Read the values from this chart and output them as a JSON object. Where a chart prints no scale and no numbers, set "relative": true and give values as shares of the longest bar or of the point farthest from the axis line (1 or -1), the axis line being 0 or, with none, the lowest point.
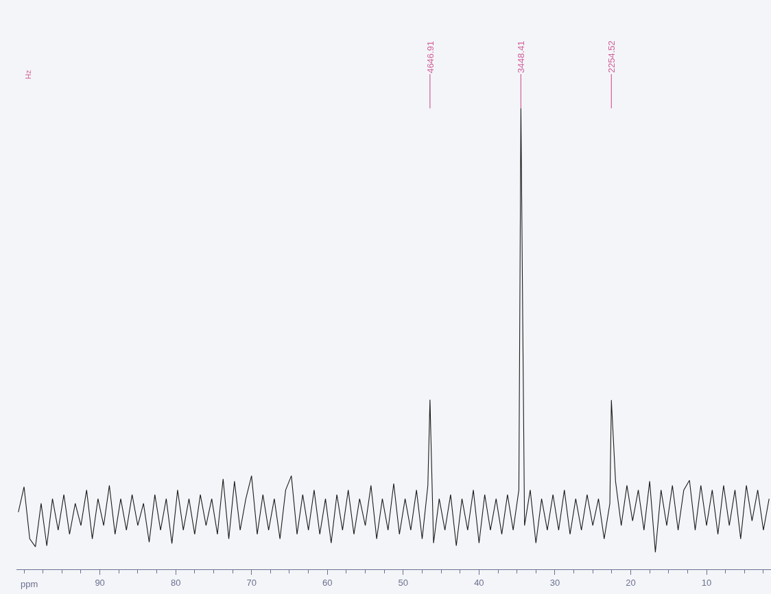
{
  "chart_data": {
    "type": "line",
    "relative": true,
    "xlabel": "ppm",
    "xlim": [
      101,
      1.5
    ],
    "xticks": [
      {
        "value": 100,
        "label": null
      },
      {
        "value": 97.5,
        "label": null
      },
      {
        "value": 95,
        "label": null
      },
      {
        "value": 92.5,
        "label": null
      },
      90,
      {
        "value": 87.5,
        "label": null
      },
      {
        "value": 85,
        "label": null
      },
      {
        "value": 82.5,
        "label": null
      },
      80,
      {
        "value": 77.5,
        "label": null
      },
      {
        "value": 75,
        "label": null
      },
      {
        "value": 72.5,
        "label": null
      },
      70,
      {
        "value": 67.5,
        "label": null
      },
      {
        "value": 65,
        "label": null
      },
      {
        "value": 62.5,
        "label": null
      },
      60,
      {
        "value": 57.5,
        "label": null
      },
      {
        "value": 55,
        "label": null
      },
      {
        "value": 52.5,
        "label": null
      },
      50,
      {
        "value": 47.5,
        "label": null
      },
      {
        "value": 45,
        "label": null
      },
      {
        "value": 42.5,
        "label": null
      },
      40,
      {
        "value": 37.5,
        "label": null
      },
      {
        "value": 35,
        "label": null
      },
      {
        "value": 32.5,
        "label": null
      },
      30,
      {
        "value": 27.5,
        "label": null
      },
      {
        "value": 25,
        "label": null
      },
      {
        "value": 22.5,
        "label": null
      },
      20,
      {
        "value": 17.5,
        "label": null
      },
      {
        "value": 15,
        "label": null
      },
      {
        "value": 12.5,
        "label": null
      },
      10,
      {
        "value": 7.5,
        "label": null
      },
      {
        "value": 5,
        "label": null
      },
      {
        "value": 2.5,
        "label": null
      }
    ],
    "x": [
      100.75,
      100.0,
      99.25,
      98.5,
      97.75,
      97.0,
      96.25,
      95.5,
      94.75,
      94.0,
      93.25,
      92.5,
      91.75,
      91.0,
      90.25,
      89.5,
      88.75,
      88.0,
      87.25,
      86.5,
      85.75,
      85.0,
      84.25,
      83.5,
      82.75,
      82.0,
      81.25,
      80.5,
      79.75,
      79.0,
      78.25,
      77.5,
      76.75,
      76.0,
      75.25,
      74.5,
      73.75,
      73.0,
      72.25,
      71.5,
      70.75,
      70.0,
      69.25,
      68.5,
      67.75,
      67.0,
      66.25,
      65.5,
      64.75,
      64.0,
      63.25,
      62.5,
      61.75,
      61.0,
      60.25,
      59.5,
      58.75,
      58.0,
      57.25,
      56.5,
      55.75,
      55.0,
      54.25,
      53.5,
      52.75,
      52.0,
      51.25,
      50.5,
      49.75,
      49.0,
      48.25,
      47.5,
      46.75,
      46.47,
      46.0,
      45.25,
      44.5,
      43.75,
      43.0,
      42.25,
      41.5,
      40.75,
      40.0,
      39.25,
      38.5,
      37.75,
      37.0,
      36.25,
      35.5,
      34.75,
      34.48,
      34.0,
      33.25,
      32.5,
      31.75,
      31.0,
      30.25,
      29.5,
      28.75,
      28.0,
      27.25,
      26.5,
      25.75,
      25.0,
      24.25,
      23.5,
      22.75,
      22.55,
      22.0,
      21.25,
      20.5,
      19.75,
      19.0,
      18.25,
      17.5,
      16.75,
      16.0,
      15.25,
      14.5,
      13.75,
      13.0,
      12.25,
      11.5,
      10.75,
      10.0,
      9.25,
      8.5,
      7.75,
      7.0,
      6.25,
      5.5,
      4.75,
      4.0,
      3.25,
      2.5,
      1.75
    ],
    "series": [
      {
        "color": "#1a1a1a",
        "values": [
          0.124,
          0.179,
          0.066,
          0.049,
          0.143,
          0.051,
          0.153,
          0.085,
          0.162,
          0.076,
          0.143,
          0.095,
          0.172,
          0.066,
          0.153,
          0.095,
          0.182,
          0.076,
          0.153,
          0.085,
          0.162,
          0.095,
          0.143,
          0.059,
          0.162,
          0.085,
          0.153,
          0.056,
          0.172,
          0.085,
          0.153,
          0.076,
          0.162,
          0.095,
          0.153,
          0.076,
          0.196,
          0.066,
          0.191,
          0.085,
          0.153,
          0.203,
          0.076,
          0.162,
          0.085,
          0.153,
          0.066,
          0.172,
          0.203,
          0.076,
          0.162,
          0.085,
          0.172,
          0.076,
          0.153,
          0.057,
          0.162,
          0.085,
          0.172,
          0.076,
          0.153,
          0.095,
          0.182,
          0.066,
          0.153,
          0.085,
          0.186,
          0.076,
          0.153,
          0.085,
          0.172,
          0.066,
          0.182,
          0.368,
          0.057,
          0.153,
          0.085,
          0.162,
          0.051,
          0.153,
          0.085,
          0.172,
          0.057,
          0.162,
          0.085,
          0.153,
          0.076,
          0.162,
          0.085,
          0.172,
          1.0,
          0.095,
          0.172,
          0.057,
          0.153,
          0.085,
          0.162,
          0.085,
          0.172,
          0.076,
          0.153,
          0.085,
          0.162,
          0.095,
          0.153,
          0.066,
          0.143,
          0.367,
          0.191,
          0.095,
          0.182,
          0.105,
          0.172,
          0.085,
          0.191,
          0.037,
          0.172,
          0.095,
          0.182,
          0.085,
          0.172,
          0.193,
          0.085,
          0.182,
          0.095,
          0.172,
          0.076,
          0.182,
          0.095,
          0.172,
          0.066,
          0.182,
          0.105,
          0.172,
          0.085,
          0.153
        ]
      }
    ],
    "annotations": [
      {
        "text": "4646.91",
        "x": 46.47
      },
      {
        "text": "3448.41",
        "x": 34.48
      },
      {
        "text": "2254.52",
        "x": 22.55
      },
      "Hz"
    ]
  }
}
